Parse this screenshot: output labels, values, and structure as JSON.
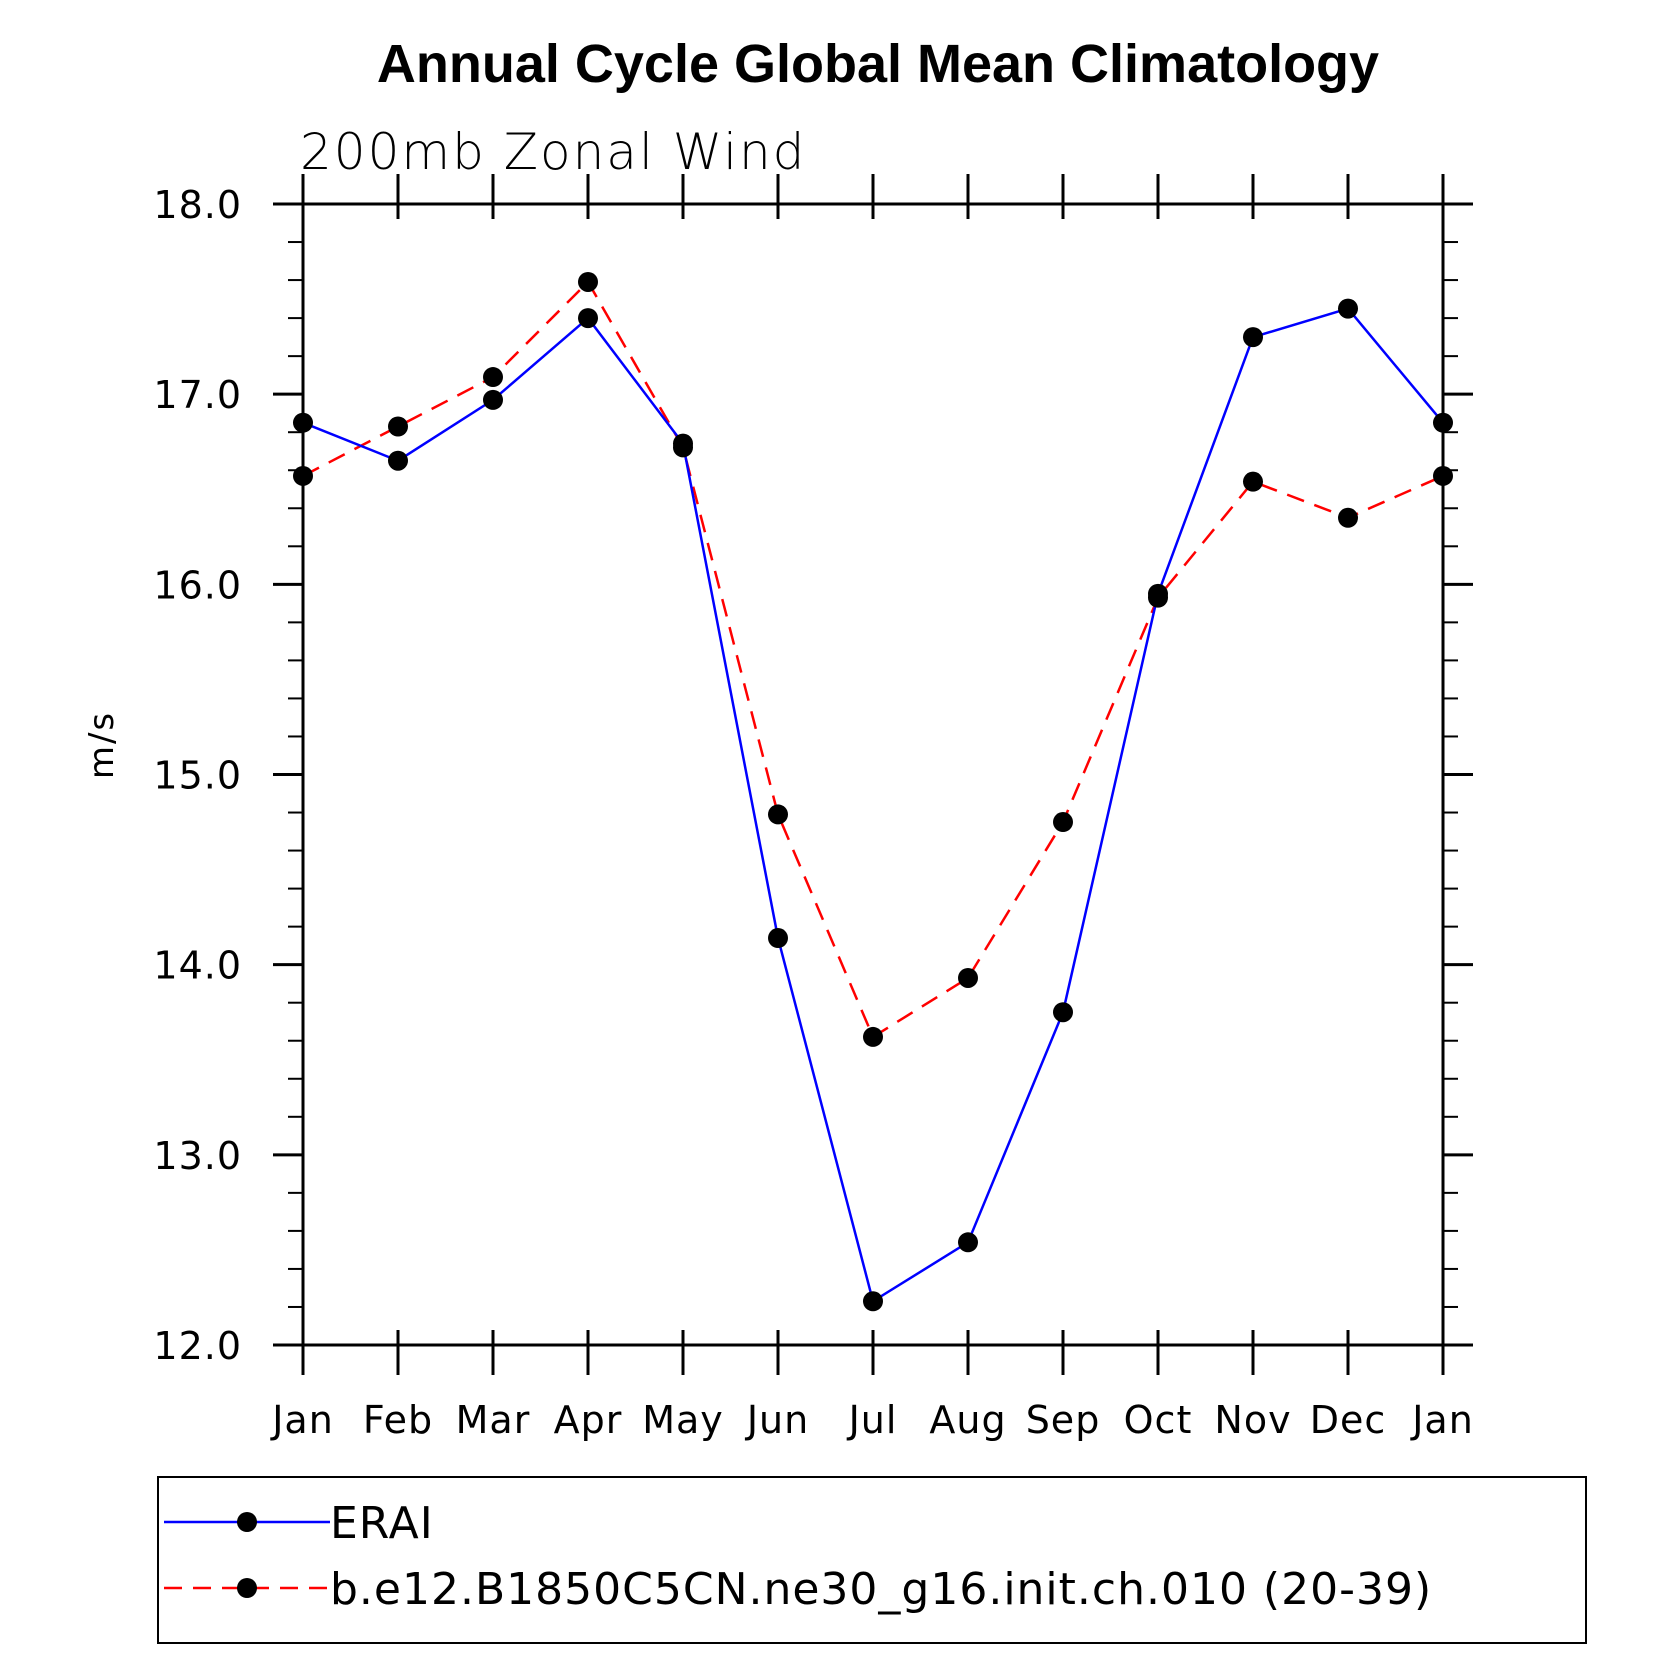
{
  "chart_data": {
    "type": "line",
    "title": "Annual Cycle Global Mean Climatology",
    "subtitle": "200mb Zonal Wind",
    "xlabel": "",
    "ylabel": "m/s",
    "categories": [
      "Jan",
      "Feb",
      "Mar",
      "Apr",
      "May",
      "Jun",
      "Jul",
      "Aug",
      "Sep",
      "Oct",
      "Nov",
      "Dec",
      "Jan"
    ],
    "ylim": [
      12.0,
      18.0
    ],
    "yticks": [
      "12.0",
      "13.0",
      "14.0",
      "15.0",
      "16.0",
      "17.0",
      "18.0"
    ],
    "grid": false,
    "legend_position": "bottom",
    "series": [
      {
        "name": "ERAI",
        "color": "#0000ff",
        "style": "solid",
        "marker": "filled-circle",
        "values": [
          16.85,
          16.65,
          16.97,
          17.4,
          16.74,
          14.14,
          12.23,
          12.54,
          13.75,
          15.95,
          17.3,
          17.45,
          16.85
        ]
      },
      {
        "name": "b.e12.B1850C5CN.ne30_g16.init.ch.010 (20-39)",
        "color": "#ff0000",
        "style": "dashed",
        "marker": "filled-circle",
        "values": [
          16.57,
          16.83,
          17.09,
          17.59,
          16.72,
          14.79,
          13.62,
          13.93,
          14.75,
          15.93,
          16.54,
          16.35,
          16.57
        ]
      }
    ]
  }
}
